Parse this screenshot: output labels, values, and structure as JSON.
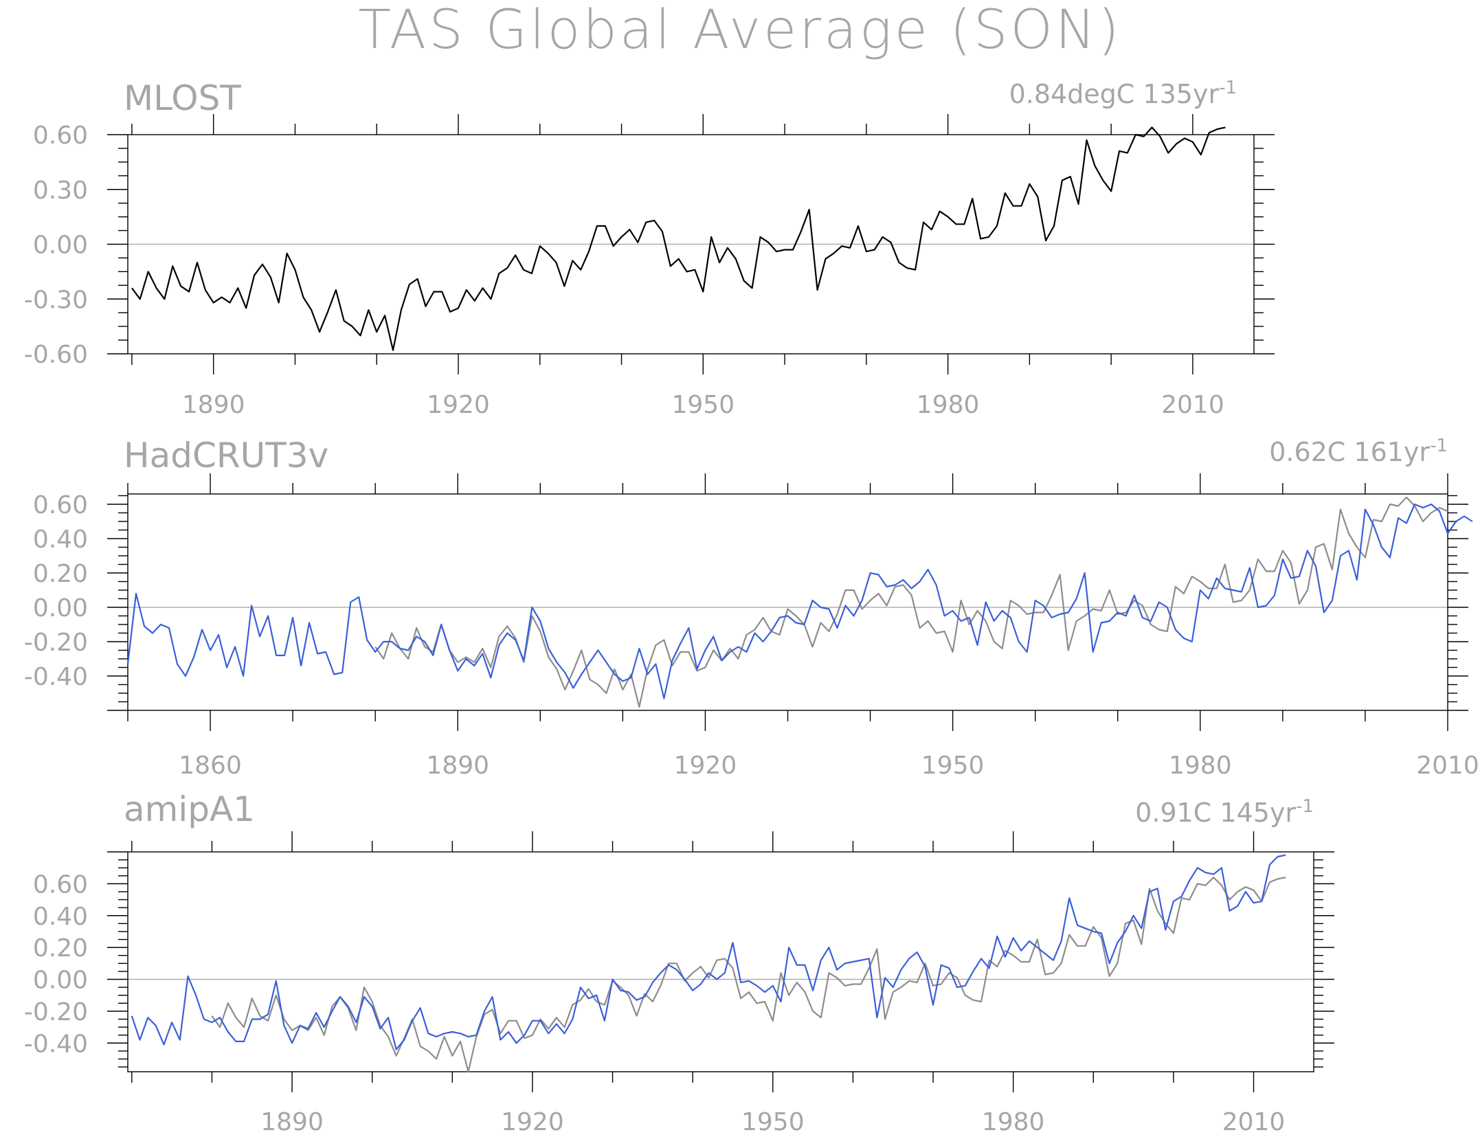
{
  "title": "TAS Global Average (SON)",
  "colors": {
    "obs": "#000000",
    "model": "#3a5fd9",
    "ref": "#8c8c8c",
    "text": "#a6a6a6"
  },
  "chart_data": [
    {
      "type": "line",
      "title": "MLOST",
      "stat_prefix": "0.84degC 135yr",
      "stat_sup": "-1",
      "ylim": [
        -0.6,
        0.6
      ],
      "yticks": [
        "0.60",
        "0.30",
        "0.00",
        "-0.30",
        "-0.60"
      ],
      "xticks": [
        "1890",
        "1920",
        "1950",
        "1980",
        "2010"
      ],
      "xlim": [
        1879.5,
        2017.5
      ],
      "series": [
        {
          "role": "obs",
          "start": 1880,
          "values": [
            -0.24,
            -0.3,
            -0.15,
            -0.24,
            -0.3,
            -0.12,
            -0.23,
            -0.26,
            -0.1,
            -0.25,
            -0.32,
            -0.29,
            -0.32,
            -0.24,
            -0.35,
            -0.17,
            -0.11,
            -0.18,
            -0.32,
            -0.05,
            -0.14,
            -0.29,
            -0.36,
            -0.48,
            -0.37,
            -0.25,
            -0.42,
            -0.45,
            -0.5,
            -0.36,
            -0.48,
            -0.39,
            -0.58,
            -0.36,
            -0.22,
            -0.19,
            -0.34,
            -0.26,
            -0.26,
            -0.37,
            -0.35,
            -0.25,
            -0.31,
            -0.24,
            -0.3,
            -0.16,
            -0.13,
            -0.06,
            -0.14,
            -0.16,
            -0.01,
            -0.05,
            -0.1,
            -0.23,
            -0.09,
            -0.14,
            -0.04,
            0.1,
            0.1,
            -0.01,
            0.04,
            0.08,
            0.01,
            0.12,
            0.13,
            0.07,
            -0.12,
            -0.08,
            -0.15,
            -0.14,
            -0.26,
            0.04,
            -0.1,
            -0.02,
            -0.08,
            -0.2,
            -0.24,
            0.04,
            0.01,
            -0.04,
            -0.03,
            -0.03,
            0.07,
            0.19,
            -0.25,
            -0.08,
            -0.05,
            -0.01,
            -0.02,
            0.1,
            -0.04,
            -0.03,
            0.04,
            0.01,
            -0.1,
            -0.13,
            -0.14,
            0.12,
            0.08,
            0.18,
            0.15,
            0.11,
            0.11,
            0.25,
            0.03,
            0.04,
            0.1,
            0.28,
            0.21,
            0.21,
            0.33,
            0.26,
            0.02,
            0.1,
            0.35,
            0.37,
            0.22,
            0.57,
            0.43,
            0.35,
            0.29,
            0.51,
            0.5,
            0.6,
            0.59,
            0.64,
            0.59,
            0.5,
            0.55,
            0.58,
            0.56,
            0.49,
            0.61,
            0.63,
            0.64
          ]
        }
      ]
    },
    {
      "type": "line",
      "title": "HadCRUT3v",
      "stat_prefix": "0.62C 161yr",
      "stat_sup": "-1",
      "ylim": [
        -0.6,
        0.66
      ],
      "yticks": [
        "0.60",
        "0.40",
        "0.20",
        "0.00",
        "-0.20",
        "-0.40"
      ],
      "xticks": [
        "1860",
        "1890",
        "1920",
        "1950",
        "1980",
        "2010"
      ],
      "xlim": [
        1850,
        2010
      ],
      "series": [
        {
          "role": "model",
          "start": 1850,
          "values": [
            -0.33,
            0.08,
            -0.11,
            -0.15,
            -0.1,
            -0.12,
            -0.33,
            -0.4,
            -0.29,
            -0.13,
            -0.25,
            -0.16,
            -0.35,
            -0.23,
            -0.4,
            0.01,
            -0.17,
            -0.05,
            -0.28,
            -0.28,
            -0.06,
            -0.34,
            -0.09,
            -0.27,
            -0.26,
            -0.39,
            -0.38,
            0.03,
            0.06,
            -0.19,
            -0.26,
            -0.2,
            -0.2,
            -0.24,
            -0.25,
            -0.17,
            -0.2,
            -0.28,
            -0.1,
            -0.25,
            -0.37,
            -0.3,
            -0.34,
            -0.27,
            -0.41,
            -0.22,
            -0.15,
            -0.19,
            -0.31,
            0.0,
            -0.08,
            -0.24,
            -0.32,
            -0.38,
            -0.47,
            -0.39,
            -0.32,
            -0.25,
            -0.32,
            -0.39,
            -0.43,
            -0.41,
            -0.24,
            -0.39,
            -0.33,
            -0.53,
            -0.31,
            -0.21,
            -0.12,
            -0.36,
            -0.25,
            -0.17,
            -0.31,
            -0.26,
            -0.23,
            -0.26,
            -0.15,
            -0.2,
            -0.14,
            -0.06,
            -0.05,
            -0.09,
            -0.1,
            0.04,
            0.0,
            -0.01,
            -0.12,
            0.01,
            -0.05,
            0.04,
            0.2,
            0.19,
            0.12,
            0.13,
            0.16,
            0.11,
            0.15,
            0.22,
            0.13,
            -0.05,
            -0.02,
            -0.08,
            -0.06,
            -0.22,
            0.03,
            -0.08,
            -0.02,
            -0.06,
            -0.2,
            -0.26,
            0.04,
            0.01,
            -0.06,
            -0.04,
            -0.03,
            0.05,
            0.2,
            -0.26,
            -0.09,
            -0.08,
            -0.03,
            -0.05,
            0.07,
            -0.06,
            -0.08,
            0.03,
            0.0,
            -0.13,
            -0.18,
            -0.2,
            0.1,
            0.05,
            0.17,
            0.11,
            0.1,
            0.09,
            0.23,
            0.0,
            0.01,
            0.07,
            0.28,
            0.17,
            0.18,
            0.33,
            0.24,
            -0.03,
            0.04,
            0.3,
            0.33,
            0.16,
            0.57,
            0.48,
            0.35,
            0.29,
            0.52,
            0.49,
            0.6,
            0.58,
            0.6,
            0.56,
            0.43,
            0.5,
            0.53,
            0.5
          ]
        },
        {
          "role": "ref",
          "start": 1880,
          "values": [
            -0.23,
            -0.3,
            -0.15,
            -0.24,
            -0.3,
            -0.12,
            -0.23,
            -0.26,
            -0.1,
            -0.25,
            -0.32,
            -0.29,
            -0.32,
            -0.24,
            -0.35,
            -0.17,
            -0.11,
            -0.18,
            -0.32,
            -0.05,
            -0.14,
            -0.29,
            -0.36,
            -0.48,
            -0.37,
            -0.25,
            -0.42,
            -0.45,
            -0.5,
            -0.36,
            -0.48,
            -0.39,
            -0.58,
            -0.36,
            -0.22,
            -0.19,
            -0.34,
            -0.26,
            -0.26,
            -0.37,
            -0.35,
            -0.25,
            -0.31,
            -0.24,
            -0.3,
            -0.16,
            -0.13,
            -0.06,
            -0.14,
            -0.16,
            -0.01,
            -0.05,
            -0.1,
            -0.23,
            -0.09,
            -0.14,
            -0.04,
            0.1,
            0.1,
            -0.01,
            0.04,
            0.08,
            0.01,
            0.12,
            0.13,
            0.07,
            -0.12,
            -0.08,
            -0.15,
            -0.14,
            -0.26,
            0.04,
            -0.1,
            -0.02,
            -0.08,
            -0.2,
            -0.24,
            0.04,
            0.01,
            -0.04,
            -0.03,
            -0.03,
            0.07,
            0.19,
            -0.25,
            -0.08,
            -0.05,
            -0.01,
            -0.02,
            0.1,
            -0.04,
            -0.03,
            0.04,
            0.01,
            -0.1,
            -0.13,
            -0.14,
            0.12,
            0.08,
            0.18,
            0.15,
            0.11,
            0.11,
            0.25,
            0.03,
            0.04,
            0.1,
            0.28,
            0.21,
            0.21,
            0.33,
            0.26,
            0.02,
            0.1,
            0.35,
            0.37,
            0.22,
            0.57,
            0.43,
            0.35,
            0.29,
            0.51,
            0.5,
            0.6,
            0.59,
            0.64,
            0.59,
            0.5,
            0.55,
            0.58,
            0.56
          ]
        }
      ]
    },
    {
      "type": "line",
      "title": "amipA1",
      "stat_prefix": "0.91C 145yr",
      "stat_sup": "-1",
      "ylim": [
        -0.58,
        0.8
      ],
      "yticks": [
        "0.60",
        "0.40",
        "0.20",
        "0.00",
        "-0.20",
        "-0.40"
      ],
      "xticks": [
        "1890",
        "1920",
        "1950",
        "1980",
        "2010"
      ],
      "xlim": [
        1869.5,
        2017.5
      ],
      "series": [
        {
          "role": "model",
          "start": 1870,
          "values": [
            -0.23,
            -0.38,
            -0.24,
            -0.29,
            -0.41,
            -0.27,
            -0.38,
            0.02,
            -0.1,
            -0.25,
            -0.27,
            -0.24,
            -0.33,
            -0.39,
            -0.39,
            -0.25,
            -0.25,
            -0.22,
            -0.01,
            -0.29,
            -0.4,
            -0.29,
            -0.31,
            -0.21,
            -0.3,
            -0.2,
            -0.11,
            -0.17,
            -0.27,
            -0.11,
            -0.17,
            -0.31,
            -0.24,
            -0.44,
            -0.38,
            -0.26,
            -0.18,
            -0.34,
            -0.36,
            -0.34,
            -0.33,
            -0.34,
            -0.36,
            -0.35,
            -0.2,
            -0.11,
            -0.38,
            -0.33,
            -0.4,
            -0.35,
            -0.26,
            -0.26,
            -0.34,
            -0.28,
            -0.34,
            -0.25,
            -0.05,
            -0.12,
            -0.1,
            -0.26,
            0.0,
            -0.07,
            -0.08,
            -0.13,
            -0.11,
            -0.02,
            0.04,
            0.09,
            0.06,
            0.0,
            -0.07,
            -0.03,
            0.04,
            0.0,
            0.04,
            0.23,
            -0.02,
            -0.01,
            -0.04,
            -0.08,
            -0.04,
            -0.14,
            0.2,
            0.09,
            0.09,
            -0.07,
            0.12,
            0.2,
            0.06,
            0.1,
            0.11,
            0.12,
            0.13,
            -0.24,
            0.01,
            -0.05,
            0.06,
            0.13,
            0.17,
            0.08,
            -0.16,
            0.09,
            0.07,
            -0.05,
            -0.04,
            0.05,
            0.13,
            0.07,
            0.27,
            0.14,
            0.26,
            0.18,
            0.24,
            0.2,
            0.16,
            0.12,
            0.24,
            0.51,
            0.34,
            0.32,
            0.3,
            0.29,
            0.1,
            0.23,
            0.3,
            0.4,
            0.32,
            0.55,
            0.57,
            0.31,
            0.49,
            0.52,
            0.62,
            0.7,
            0.67,
            0.66,
            0.7,
            0.43,
            0.46,
            0.55,
            0.48,
            0.49,
            0.72,
            0.77,
            0.78
          ]
        },
        {
          "role": "ref",
          "start": 1880,
          "values": [
            -0.23,
            -0.3,
            -0.15,
            -0.24,
            -0.3,
            -0.12,
            -0.23,
            -0.26,
            -0.1,
            -0.25,
            -0.32,
            -0.29,
            -0.32,
            -0.24,
            -0.35,
            -0.17,
            -0.11,
            -0.18,
            -0.32,
            -0.05,
            -0.14,
            -0.29,
            -0.36,
            -0.48,
            -0.37,
            -0.25,
            -0.42,
            -0.45,
            -0.5,
            -0.36,
            -0.48,
            -0.39,
            -0.58,
            -0.36,
            -0.22,
            -0.19,
            -0.34,
            -0.26,
            -0.26,
            -0.37,
            -0.35,
            -0.25,
            -0.31,
            -0.24,
            -0.3,
            -0.16,
            -0.13,
            -0.06,
            -0.14,
            -0.16,
            -0.01,
            -0.05,
            -0.1,
            -0.23,
            -0.09,
            -0.14,
            -0.04,
            0.1,
            0.1,
            -0.01,
            0.04,
            0.08,
            0.01,
            0.12,
            0.13,
            0.07,
            -0.12,
            -0.08,
            -0.15,
            -0.14,
            -0.26,
            0.04,
            -0.1,
            -0.02,
            -0.08,
            -0.2,
            -0.24,
            0.04,
            0.01,
            -0.04,
            -0.03,
            -0.03,
            0.07,
            0.19,
            -0.25,
            -0.08,
            -0.05,
            -0.01,
            -0.02,
            0.1,
            -0.04,
            -0.03,
            0.04,
            0.01,
            -0.1,
            -0.13,
            -0.14,
            0.12,
            0.08,
            0.18,
            0.15,
            0.11,
            0.11,
            0.25,
            0.03,
            0.04,
            0.1,
            0.28,
            0.21,
            0.21,
            0.33,
            0.26,
            0.02,
            0.1,
            0.35,
            0.37,
            0.22,
            0.57,
            0.43,
            0.35,
            0.29,
            0.51,
            0.5,
            0.6,
            0.59,
            0.64,
            0.59,
            0.5,
            0.55,
            0.58,
            0.56,
            0.49,
            0.61,
            0.63,
            0.64
          ]
        }
      ]
    }
  ]
}
